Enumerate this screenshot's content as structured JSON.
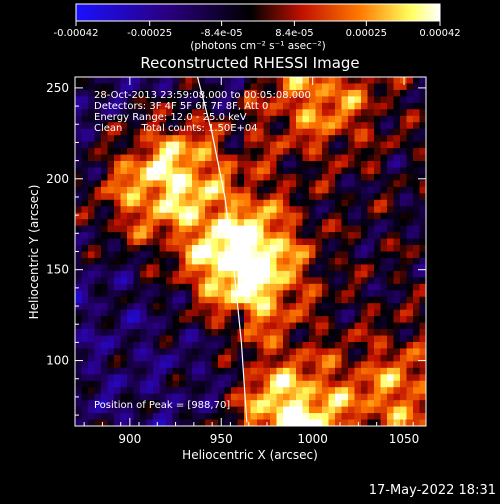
{
  "colorbar": {
    "ticks": [
      "-0.00042",
      "-0.00025",
      "-8.4e-05",
      "8.4e-05",
      "0.00025",
      "0.00042"
    ],
    "tick_values": [
      -0.00042,
      -0.00025,
      -8.4e-05,
      8.4e-05,
      0.00025,
      0.00042
    ],
    "range": [
      -0.00042,
      0.00042
    ],
    "units_label": "(photons cm⁻² s⁻¹ asec⁻²)",
    "colors": [
      "#1a10ff",
      "#2a0080",
      "#000000",
      "#c01000",
      "#ff7a00",
      "#ffff60",
      "#ffffff"
    ]
  },
  "chart_data": {
    "type": "heatmap",
    "title": "Reconstructed RHESSI Image",
    "xlabel": "Heliocentric X (arcsec)",
    "ylabel": "Heliocentric Y (arcsec)",
    "xlim": [
      870,
      1062
    ],
    "ylim": [
      64,
      256
    ],
    "xticks": [
      900,
      950,
      1000,
      1050
    ],
    "yticks": [
      100,
      150,
      200,
      250
    ],
    "annotations": [
      "28-Oct-2013 23:59:08.000 to 00:05:08.000",
      "Detectors: 3F 4F 5F 6F 7F 8F, Att 0",
      "Energy Range: 12.0 - 25.0 keV",
      "Clean      Total counts: 1.50E+04"
    ],
    "peak_label": "Position of Peak = [988,70]",
    "peak": {
      "x": 988,
      "y": 70
    },
    "hot_spots": [
      {
        "x": 988,
        "y": 70,
        "v": 1.0
      },
      {
        "x": 956,
        "y": 162,
        "v": 0.85
      },
      {
        "x": 930,
        "y": 208,
        "v": 0.8
      },
      {
        "x": 905,
        "y": 190,
        "v": 0.6
      },
      {
        "x": 1005,
        "y": 245,
        "v": 0.65
      },
      {
        "x": 1048,
        "y": 82,
        "v": 0.6
      },
      {
        "x": 965,
        "y": 145,
        "v": 0.7
      }
    ],
    "limb_curve": [
      [
        937,
        256
      ],
      [
        945,
        225
      ],
      [
        952,
        190
      ],
      [
        957,
        150
      ],
      [
        961,
        110
      ],
      [
        964,
        66
      ]
    ]
  },
  "footer": {
    "timestamp": "17-May-2022 18:31"
  }
}
